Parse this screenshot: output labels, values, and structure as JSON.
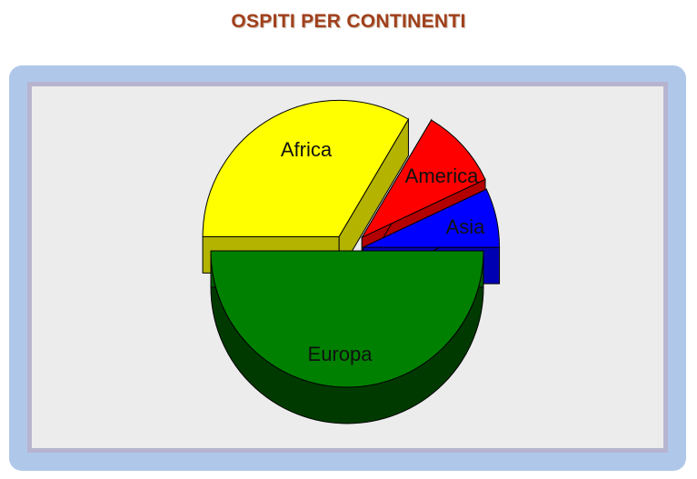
{
  "title": "OSPITI PER CONTINENTI",
  "chart_data": {
    "type": "pie",
    "style": "3d-exploded",
    "title": "OSPITI PER CONTINENTI",
    "slices": [
      {
        "label": "Europa",
        "value": 50.0,
        "color": "#008000"
      },
      {
        "label": "Africa",
        "value": 33.5,
        "color": "#ffff00"
      },
      {
        "label": "America",
        "value": 9.5,
        "color": "#ff0000"
      },
      {
        "label": "Asia",
        "value": 7.0,
        "color": "#0000ff"
      }
    ],
    "legend": "none",
    "grid": false
  }
}
